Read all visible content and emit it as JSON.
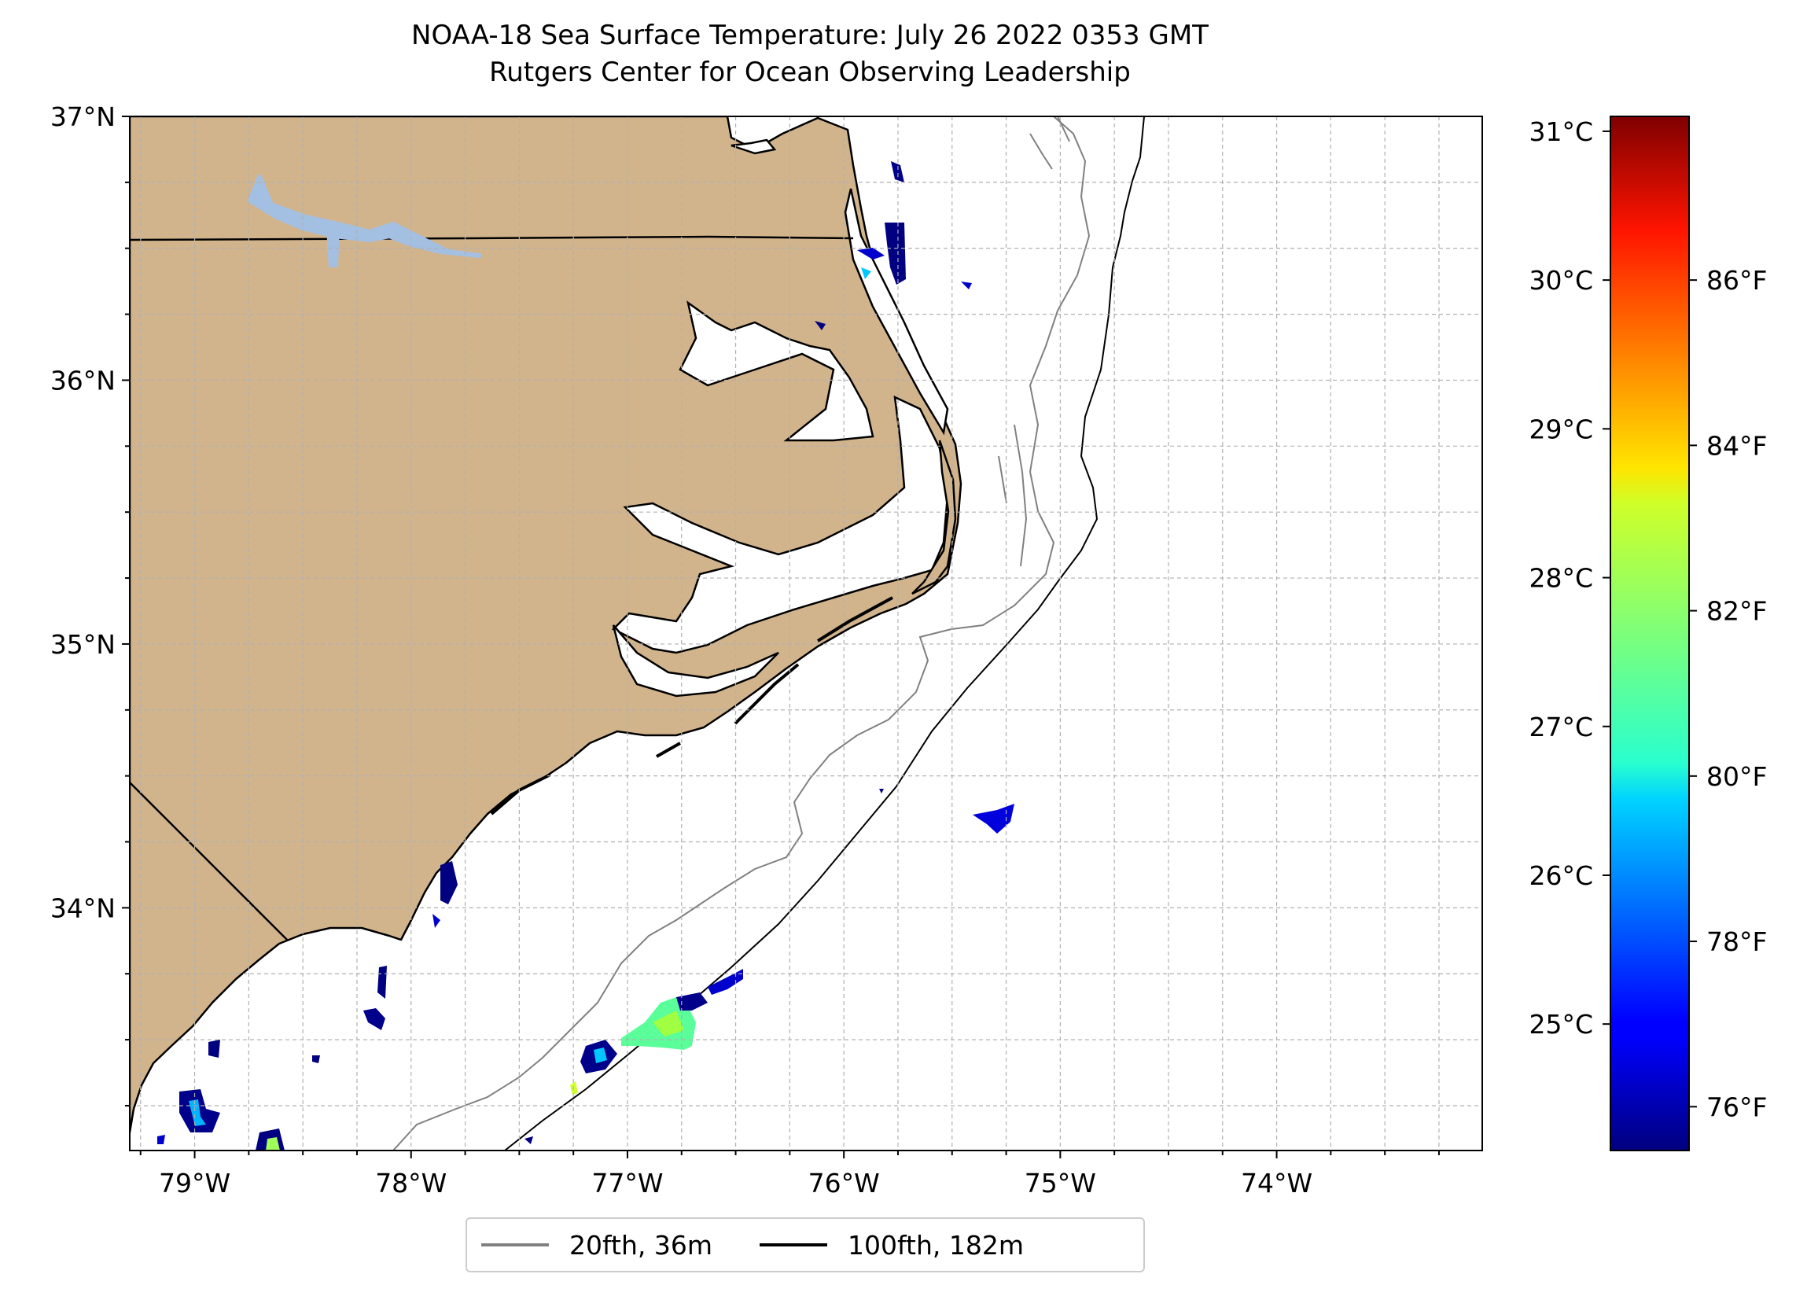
{
  "title": {
    "line1": "NOAA-18 Sea Surface Temperature: July 26 2022 0353 GMT",
    "line2": "Rutgers Center for Ocean Observing Leadership"
  },
  "map": {
    "extent": {
      "lon_min": -79.3,
      "lon_max": -73.05,
      "lat_min": 33.08,
      "lat_max": 37.0
    },
    "lat_ticks": [
      {
        "value": 37,
        "label": "37°N"
      },
      {
        "value": 36,
        "label": "36°N"
      },
      {
        "value": 35,
        "label": "35°N"
      },
      {
        "value": 34,
        "label": "34°N"
      }
    ],
    "lon_ticks": [
      {
        "value": -79,
        "label": "79°W"
      },
      {
        "value": -78,
        "label": "78°W"
      },
      {
        "value": -77,
        "label": "77°W"
      },
      {
        "value": -76,
        "label": "76°W"
      },
      {
        "value": -75,
        "label": "75°W"
      },
      {
        "value": -74,
        "label": "74°W"
      }
    ],
    "gridlines": "dashed, every 0.25°",
    "colors": {
      "land": "#d2b48c",
      "lake": "#a3bfe2",
      "coast": "#000000",
      "iso_20fth": "#808080",
      "iso_100fth": "#000000"
    }
  },
  "colorbar": {
    "colormap": "jet",
    "celsius_range": [
      24.15,
      31.1
    ],
    "celsius_ticks": [
      {
        "value": 31,
        "label": "31°C"
      },
      {
        "value": 30,
        "label": "30°C"
      },
      {
        "value": 29,
        "label": "29°C"
      },
      {
        "value": 28,
        "label": "28°C"
      },
      {
        "value": 27,
        "label": "27°C"
      },
      {
        "value": 26,
        "label": "26°C"
      },
      {
        "value": 25,
        "label": "25°C"
      }
    ],
    "fahrenheit_ticks": [
      {
        "value": 86,
        "label": "86°F"
      },
      {
        "value": 84,
        "label": "84°F"
      },
      {
        "value": 82,
        "label": "82°F"
      },
      {
        "value": 80,
        "label": "80°F"
      },
      {
        "value": 78,
        "label": "78°F"
      },
      {
        "value": 76,
        "label": "76°F"
      }
    ]
  },
  "legend": {
    "items": [
      {
        "label": "20fth, 36m",
        "color": "#808080"
      },
      {
        "label": "100fth, 182m",
        "color": "#000000"
      }
    ]
  }
}
